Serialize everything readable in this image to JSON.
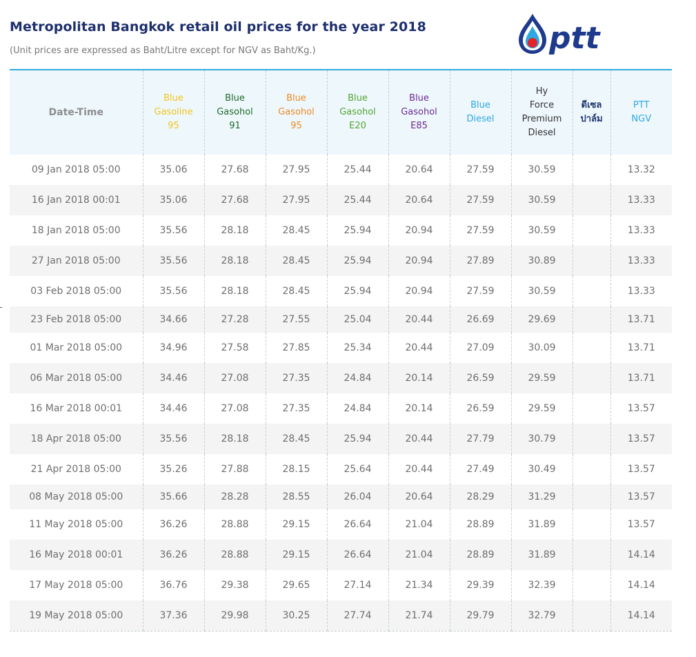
{
  "page": {
    "title": "Metropolitan Bangkok retail oil prices for the year 2018",
    "subtitle": "(Unit prices are expressed as Baht/Litre except for NGV as Baht/Kg.)",
    "logo_text": "ptt"
  },
  "colors": {
    "accent_line": "#2ea8e0",
    "title": "#1e2f6d",
    "logo_blue": "#1e3a8c",
    "logo_red": "#e3242b"
  },
  "table": {
    "columns": [
      {
        "key": "dt",
        "lines": [
          "Date-Time"
        ],
        "color": "#8e8e8e"
      },
      {
        "key": "g95",
        "lines": [
          "Blue",
          "Gasoline",
          "95"
        ],
        "color": "#f2c51c"
      },
      {
        "key": "g91",
        "lines": [
          "Blue",
          "Gasohol",
          "91"
        ],
        "color": "#1d6b2a"
      },
      {
        "key": "gh95",
        "lines": [
          "Blue",
          "Gasohol",
          "95"
        ],
        "color": "#ef8a22"
      },
      {
        "key": "e20",
        "lines": [
          "Blue",
          "Gasohol",
          "E20"
        ],
        "color": "#52a530"
      },
      {
        "key": "e85",
        "lines": [
          "Blue",
          "Gasohol",
          "E85"
        ],
        "color": "#6b2a8e"
      },
      {
        "key": "dsl",
        "lines": [
          "Blue",
          "Diesel"
        ],
        "color": "#2ea8e0"
      },
      {
        "key": "hy",
        "lines": [
          "Hy",
          "Force",
          "Premium",
          "Diesel"
        ],
        "color": "#333333"
      },
      {
        "key": "palm",
        "lines": [
          "ดีเซล",
          "ปาล์ม"
        ],
        "color": "#1e3670"
      },
      {
        "key": "ngv",
        "lines": [
          "PTT",
          "NGV"
        ],
        "color": "#2ea8e0"
      }
    ],
    "rows": [
      {
        "date": "09 Jan 2018 05:00",
        "v": [
          "35.06",
          "27.68",
          "27.95",
          "25.44",
          "20.64",
          "27.59",
          "30.59",
          "",
          "13.32"
        ]
      },
      {
        "date": "16 Jan 2018 00:01",
        "v": [
          "35.06",
          "27.68",
          "27.95",
          "25.44",
          "20.64",
          "27.59",
          "30.59",
          "",
          "13.33"
        ]
      },
      {
        "date": "18 Jan 2018 05:00",
        "v": [
          "35.56",
          "28.18",
          "28.45",
          "25.94",
          "20.94",
          "27.59",
          "30.59",
          "",
          "13.33"
        ]
      },
      {
        "date": "27 Jan 2018 05:00",
        "v": [
          "35.56",
          "28.18",
          "28.45",
          "25.94",
          "20.94",
          "27.89",
          "30.89",
          "",
          "13.33"
        ]
      },
      {
        "date": "03 Feb 2018 05:00",
        "v": [
          "35.56",
          "28.18",
          "28.45",
          "25.94",
          "20.94",
          "27.59",
          "30.59",
          "",
          "13.33"
        ]
      },
      {
        "date": "23 Feb 2018 05:00",
        "v": [
          "34.66",
          "27.28",
          "27.55",
          "25.04",
          "20.44",
          "26.69",
          "29.69",
          "",
          "13.71"
        ]
      },
      {
        "date": "01 Mar 2018 05:00",
        "v": [
          "34.96",
          "27.58",
          "27.85",
          "25.34",
          "20.44",
          "27.09",
          "30.09",
          "",
          "13.71"
        ]
      },
      {
        "date": "06 Mar 2018 05:00",
        "v": [
          "34.46",
          "27.08",
          "27.35",
          "24.84",
          "20.14",
          "26.59",
          "29.59",
          "",
          "13.71"
        ]
      },
      {
        "date": "16 Mar 2018 00:01",
        "v": [
          "34.46",
          "27.08",
          "27.35",
          "24.84",
          "20.14",
          "26.59",
          "29.59",
          "",
          "13.57"
        ]
      },
      {
        "date": "18 Apr 2018 05:00",
        "v": [
          "35.56",
          "28.18",
          "28.45",
          "25.94",
          "20.44",
          "27.79",
          "30.79",
          "",
          "13.57"
        ]
      },
      {
        "date": "21 Apr 2018 05:00",
        "v": [
          "35.26",
          "27.88",
          "28.15",
          "25.64",
          "20.44",
          "27.49",
          "30.49",
          "",
          "13.57"
        ]
      },
      {
        "date": "08 May 2018 05:00",
        "v": [
          "35.66",
          "28.28",
          "28.55",
          "26.04",
          "20.64",
          "28.29",
          "31.29",
          "",
          "13.57"
        ]
      },
      {
        "date": "11 May 2018 05:00",
        "v": [
          "36.26",
          "28.88",
          "29.15",
          "26.64",
          "21.04",
          "28.89",
          "31.89",
          "",
          "13.57"
        ]
      },
      {
        "date": "16 May 2018 00:01",
        "v": [
          "36.26",
          "28.88",
          "29.15",
          "26.64",
          "21.04",
          "28.89",
          "31.89",
          "",
          "14.14"
        ]
      },
      {
        "date": "17 May 2018 05:00",
        "v": [
          "36.76",
          "29.38",
          "29.65",
          "27.14",
          "21.34",
          "29.39",
          "32.39",
          "",
          "14.14"
        ]
      },
      {
        "date": "19 May 2018 05:00",
        "v": [
          "37.36",
          "29.98",
          "30.25",
          "27.74",
          "21.74",
          "29.79",
          "32.79",
          "",
          "14.14"
        ]
      }
    ]
  }
}
